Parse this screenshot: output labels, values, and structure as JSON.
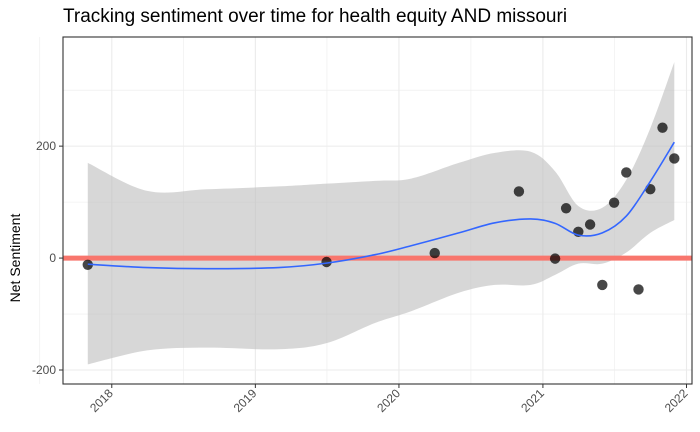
{
  "chart_data": {
    "type": "scatter",
    "title": "Tracking sentiment over time for health equity AND missouri",
    "xlabel": "",
    "ylabel": "Net Sentiment",
    "x_ticks": [
      "2018",
      "2019",
      "2020",
      "2021",
      "2022"
    ],
    "y_ticks": [
      -200,
      0,
      200
    ],
    "xlim": [
      "2017-08-30",
      "2022-01-15"
    ],
    "ylim": [
      -225,
      395
    ],
    "grid": true,
    "reference_line": {
      "y": 0,
      "color": "#f8766d"
    },
    "colors": {
      "points": "#000000",
      "smooth": "#3366ff",
      "band": "#bebebe",
      "panel_border": "#333333",
      "grid": "#ebebeb"
    },
    "points": [
      {
        "x": "2017-11-01",
        "y": -12
      },
      {
        "x": "2019-07-01",
        "y": -7
      },
      {
        "x": "2020-04-01",
        "y": 9
      },
      {
        "x": "2020-11-01",
        "y": 119
      },
      {
        "x": "2021-02-01",
        "y": -1
      },
      {
        "x": "2021-03-01",
        "y": 89
      },
      {
        "x": "2021-04-01",
        "y": 47
      },
      {
        "x": "2021-05-01",
        "y": 60
      },
      {
        "x": "2021-06-01",
        "y": -48
      },
      {
        "x": "2021-07-01",
        "y": 99
      },
      {
        "x": "2021-08-01",
        "y": 153
      },
      {
        "x": "2021-09-01",
        "y": -56
      },
      {
        "x": "2021-10-01",
        "y": 123
      },
      {
        "x": "2021-11-01",
        "y": 233
      },
      {
        "x": "2021-12-01",
        "y": 178
      }
    ],
    "smooth": [
      {
        "x": "2017-11-01",
        "y": -11,
        "lo": -190,
        "hi": 170
      },
      {
        "x": "2018-04-01",
        "y": -17,
        "lo": -165,
        "hi": 120
      },
      {
        "x": "2018-09-01",
        "y": -19,
        "lo": -160,
        "hi": 123
      },
      {
        "x": "2019-03-01",
        "y": -17,
        "lo": -163,
        "hi": 128
      },
      {
        "x": "2019-07-01",
        "y": -9,
        "lo": -152,
        "hi": 133
      },
      {
        "x": "2019-11-01",
        "y": 6,
        "lo": -116,
        "hi": 138
      },
      {
        "x": "2020-02-01",
        "y": 22,
        "lo": -95,
        "hi": 142
      },
      {
        "x": "2020-06-01",
        "y": 45,
        "lo": -62,
        "hi": 170
      },
      {
        "x": "2020-09-01",
        "y": 63,
        "lo": -48,
        "hi": 188
      },
      {
        "x": "2020-12-01",
        "y": 70,
        "lo": -48,
        "hi": 190
      },
      {
        "x": "2021-02-01",
        "y": 62,
        "lo": -30,
        "hi": 155
      },
      {
        "x": "2021-04-01",
        "y": 41,
        "lo": -10,
        "hi": 93
      },
      {
        "x": "2021-06-01",
        "y": 45,
        "lo": -10,
        "hi": 90
      },
      {
        "x": "2021-08-01",
        "y": 75,
        "lo": 10,
        "hi": 140
      },
      {
        "x": "2021-10-01",
        "y": 137,
        "lo": 45,
        "hi": 232
      },
      {
        "x": "2021-12-01",
        "y": 207,
        "lo": 68,
        "hi": 350
      }
    ]
  }
}
